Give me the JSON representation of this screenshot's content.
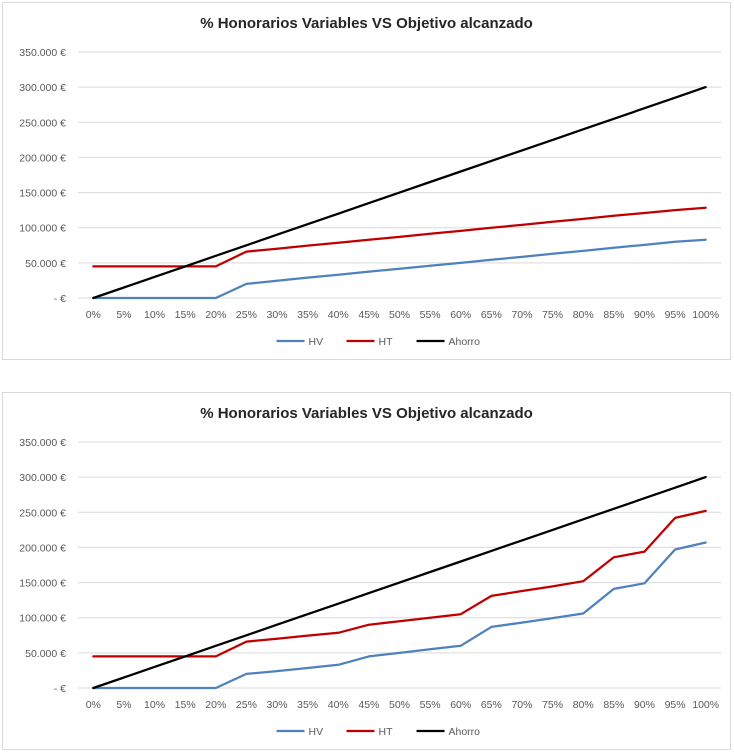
{
  "chart_data": [
    {
      "type": "line",
      "title": "% Honorarios Variables VS Objetivo alcanzado",
      "xlabel": "",
      "ylabel": "",
      "ylim": [
        0,
        350000
      ],
      "y_ticks": [
        "350.000 €",
        "300.000 €",
        "250.000 €",
        "200.000 €",
        "150.000 €",
        "100.000 €",
        "50.000 €",
        "- €"
      ],
      "y_tick_values": [
        350000,
        300000,
        250000,
        200000,
        150000,
        100000,
        50000,
        0
      ],
      "categories": [
        "0%",
        "5%",
        "10%",
        "15%",
        "20%",
        "25%",
        "30%",
        "35%",
        "40%",
        "45%",
        "50%",
        "55%",
        "60%",
        "65%",
        "70%",
        "75%",
        "80%",
        "85%",
        "90%",
        "95%",
        "100%"
      ],
      "grid": true,
      "legend_position": "bottom",
      "series": [
        {
          "name": "HV",
          "color": "#4f81bd",
          "values": [
            0,
            0,
            0,
            0,
            0,
            20000,
            24500,
            29000,
            33000,
            37500,
            41500,
            46000,
            50000,
            54500,
            58500,
            63000,
            67000,
            71500,
            75500,
            80000,
            83000
          ]
        },
        {
          "name": "HT",
          "color": "#c00000",
          "values": [
            45000,
            45000,
            45000,
            45000,
            45000,
            66000,
            70000,
            74500,
            78500,
            83000,
            87000,
            91500,
            95500,
            100000,
            104000,
            108500,
            112500,
            117000,
            121000,
            125000,
            128500
          ]
        },
        {
          "name": "Ahorro",
          "color": "#000000",
          "values": [
            0,
            15000,
            30000,
            45000,
            60000,
            75000,
            90000,
            105000,
            120000,
            135000,
            150000,
            165000,
            180000,
            195000,
            210000,
            225000,
            240000,
            255000,
            270000,
            285000,
            300000
          ]
        }
      ]
    },
    {
      "type": "line",
      "title": "% Honorarios Variables VS Objetivo alcanzado",
      "xlabel": "",
      "ylabel": "",
      "ylim": [
        0,
        350000
      ],
      "y_ticks": [
        "350.000 €",
        "300.000 €",
        "250.000 €",
        "200.000 €",
        "150.000 €",
        "100.000 €",
        "50.000 €",
        "- €"
      ],
      "y_tick_values": [
        350000,
        300000,
        250000,
        200000,
        150000,
        100000,
        50000,
        0
      ],
      "categories": [
        "0%",
        "5%",
        "10%",
        "15%",
        "20%",
        "25%",
        "30%",
        "35%",
        "40%",
        "45%",
        "50%",
        "55%",
        "60%",
        "65%",
        "70%",
        "75%",
        "80%",
        "85%",
        "90%",
        "95%",
        "100%"
      ],
      "grid": true,
      "legend_position": "bottom",
      "series": [
        {
          "name": "HV",
          "color": "#4f81bd",
          "values": [
            0,
            0,
            0,
            0,
            0,
            20000,
            24000,
            28500,
            33000,
            45000,
            50000,
            55000,
            60000,
            87000,
            93000,
            99500,
            106000,
            141000,
            149000,
            197000,
            207000
          ]
        },
        {
          "name": "HT",
          "color": "#c00000",
          "values": [
            45000,
            45000,
            45000,
            45000,
            45000,
            66000,
            70000,
            74500,
            78500,
            90000,
            95000,
            100000,
            105000,
            131000,
            138000,
            144500,
            152000,
            186000,
            194000,
            242000,
            252000
          ]
        },
        {
          "name": "Ahorro",
          "color": "#000000",
          "values": [
            0,
            15000,
            30000,
            45000,
            60000,
            75000,
            90000,
            105000,
            120000,
            135000,
            150000,
            165000,
            180000,
            195000,
            210000,
            225000,
            240000,
            255000,
            270000,
            285000,
            300000
          ]
        }
      ]
    }
  ]
}
